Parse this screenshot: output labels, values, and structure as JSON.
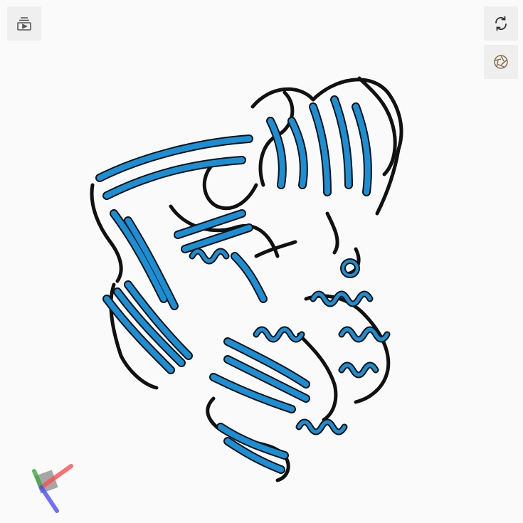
{
  "viewer": {
    "background_color": "#fbfafa",
    "ribbon_color": "#1b8fd6",
    "outline_color": "#111111"
  },
  "toolbar": {
    "menu_icon": "layers-play-icon",
    "spin_icon": "rotate-arrows-icon",
    "snapshot_icon": "camera-aperture-icon"
  },
  "axes": {
    "x_color": "#ff4d4d",
    "y_color": "#3daa3d",
    "z_color": "#4d4dff"
  }
}
